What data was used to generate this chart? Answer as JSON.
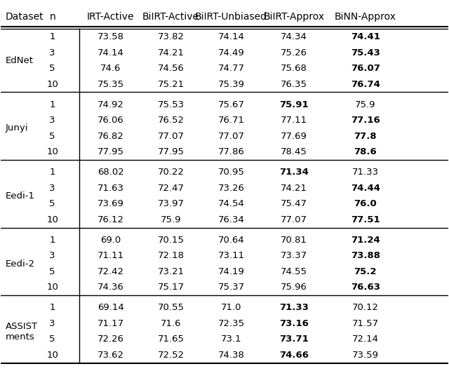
{
  "headers": [
    "Dataset",
    "n",
    "IRT-Active",
    "BiIRT-Active",
    "BiIRT-Unbiased",
    "BiIRT-Approx",
    "BiNN-Approx"
  ],
  "datasets": [
    "EdNet",
    "Junyi",
    "Eedi-1",
    "Eedi-2",
    "ASSIST\nments"
  ],
  "n_values": [
    1,
    3,
    5,
    10
  ],
  "table_data": [
    [
      [
        "73.58",
        "73.82",
        "74.14",
        "74.34",
        "74.41"
      ],
      [
        "74.14",
        "74.21",
        "74.49",
        "75.26",
        "75.43"
      ],
      [
        "74.6",
        "74.56",
        "74.77",
        "75.68",
        "76.07"
      ],
      [
        "75.35",
        "75.21",
        "75.39",
        "76.35",
        "76.74"
      ]
    ],
    [
      [
        "74.92",
        "75.53",
        "75.67",
        "75.91",
        "75.9"
      ],
      [
        "76.06",
        "76.52",
        "76.71",
        "77.11",
        "77.16"
      ],
      [
        "76.82",
        "77.07",
        "77.07",
        "77.69",
        "77.8"
      ],
      [
        "77.95",
        "77.95",
        "77.86",
        "78.45",
        "78.6"
      ]
    ],
    [
      [
        "68.02",
        "70.22",
        "70.95",
        "71.34",
        "71.33"
      ],
      [
        "71.63",
        "72.47",
        "73.26",
        "74.21",
        "74.44"
      ],
      [
        "73.69",
        "73.97",
        "74.54",
        "75.47",
        "76.0"
      ],
      [
        "76.12",
        "75.9",
        "76.34",
        "77.07",
        "77.51"
      ]
    ],
    [
      [
        "69.0",
        "70.15",
        "70.64",
        "70.81",
        "71.24"
      ],
      [
        "71.11",
        "72.18",
        "73.11",
        "73.37",
        "73.88"
      ],
      [
        "72.42",
        "73.21",
        "74.19",
        "74.55",
        "75.2"
      ],
      [
        "74.36",
        "75.17",
        "75.37",
        "75.96",
        "76.63"
      ]
    ],
    [
      [
        "69.14",
        "70.55",
        "71.0",
        "71.33",
        "70.12"
      ],
      [
        "71.17",
        "71.6",
        "72.35",
        "73.16",
        "71.57"
      ],
      [
        "72.26",
        "71.65",
        "73.1",
        "73.71",
        "72.14"
      ],
      [
        "73.62",
        "72.52",
        "74.38",
        "74.66",
        "73.59"
      ]
    ]
  ],
  "bold_data": [
    [
      [
        false,
        false,
        false,
        false,
        true
      ],
      [
        false,
        false,
        false,
        false,
        true
      ],
      [
        false,
        false,
        false,
        false,
        true
      ],
      [
        false,
        false,
        false,
        false,
        true
      ]
    ],
    [
      [
        false,
        false,
        false,
        true,
        false
      ],
      [
        false,
        false,
        false,
        false,
        true
      ],
      [
        false,
        false,
        false,
        false,
        true
      ],
      [
        false,
        false,
        false,
        false,
        true
      ]
    ],
    [
      [
        false,
        false,
        false,
        true,
        false
      ],
      [
        false,
        false,
        false,
        false,
        true
      ],
      [
        false,
        false,
        false,
        false,
        true
      ],
      [
        false,
        false,
        false,
        false,
        true
      ]
    ],
    [
      [
        false,
        false,
        false,
        false,
        true
      ],
      [
        false,
        false,
        false,
        false,
        true
      ],
      [
        false,
        false,
        false,
        false,
        true
      ],
      [
        false,
        false,
        false,
        false,
        true
      ]
    ],
    [
      [
        false,
        false,
        false,
        true,
        false
      ],
      [
        false,
        false,
        false,
        true,
        false
      ],
      [
        false,
        false,
        false,
        true,
        false
      ],
      [
        false,
        false,
        false,
        true,
        false
      ]
    ]
  ],
  "figsize": [
    6.4,
    5.39
  ],
  "dpi": 100,
  "bg_color": "#ffffff",
  "text_color": "#000000",
  "header_fontsize": 10,
  "cell_fontsize": 9.5
}
